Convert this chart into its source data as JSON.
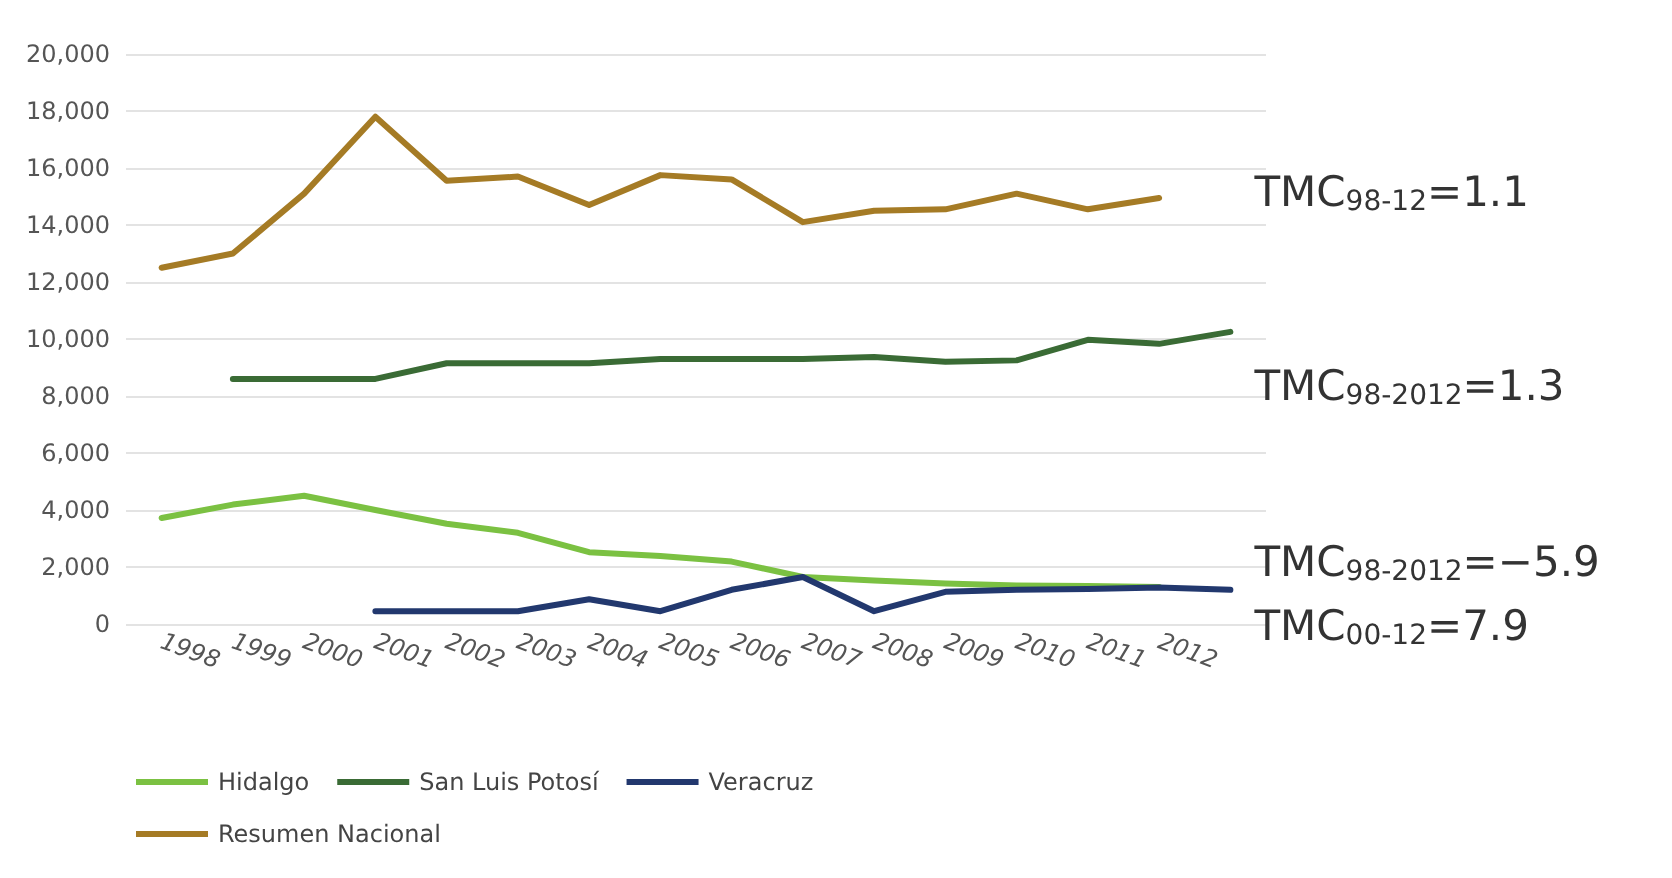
{
  "chart_data": {
    "type": "line",
    "categories": [
      "1998",
      "1999",
      "2000",
      "2001",
      "2002",
      "2003",
      "2004",
      "2005",
      "2006",
      "2007",
      "2008",
      "2009",
      "2010",
      "2011",
      "2012",
      null
    ],
    "series": [
      {
        "name": "Hidalgo",
        "color": "#7bc142",
        "values": [
          3720,
          4190,
          4500,
          4000,
          3520,
          3200,
          2520,
          2390,
          2190,
          1650,
          1530,
          1420,
          1350,
          1330,
          1300,
          null
        ]
      },
      {
        "name": "San Luis Potosí",
        "color": "#3a6b35",
        "values": [
          null,
          8600,
          8600,
          8600,
          9150,
          9150,
          9150,
          9300,
          9300,
          9300,
          9370,
          9200,
          9250,
          9970,
          9830,
          10250
        ]
      },
      {
        "name": "Veracruz",
        "color": "#22386e",
        "values": [
          null,
          null,
          null,
          450,
          450,
          450,
          870,
          450,
          1200,
          1650,
          450,
          1130,
          1200,
          1230,
          1280,
          1200
        ]
      },
      {
        "name": "Resumen Nacional",
        "color": "#a57b25",
        "values": [
          12500,
          13000,
          15100,
          17800,
          15550,
          15700,
          14700,
          15750,
          15600,
          14100,
          14500,
          14550,
          15100,
          14550,
          14950,
          null
        ]
      }
    ],
    "ylim": [
      0,
      20000
    ],
    "yticks": [
      {
        "value": 0,
        "label": "0"
      },
      {
        "value": 2000,
        "label": "2,000"
      },
      {
        "value": 4000,
        "label": "4,000"
      },
      {
        "value": 6000,
        "label": "6,000"
      },
      {
        "value": 8000,
        "label": "8,000"
      },
      {
        "value": 10000,
        "label": "10,000"
      },
      {
        "value": 12000,
        "label": "12,000"
      },
      {
        "value": 14000,
        "label": "14,000"
      },
      {
        "value": 16000,
        "label": "16,000"
      },
      {
        "value": 18000,
        "label": "18,000"
      },
      {
        "value": 20000,
        "label": "20,000"
      }
    ],
    "grid": "y",
    "legend": "bottom",
    "marker": "none",
    "line_style": "solid",
    "annotations": [
      "TMC$_{98-12}$=1.1",
      "TMC$_{98-2012}$=1.3",
      "TMC$_{98-2012}$=−5.9",
      "TMC$_{00-12}$=7.9"
    ]
  }
}
